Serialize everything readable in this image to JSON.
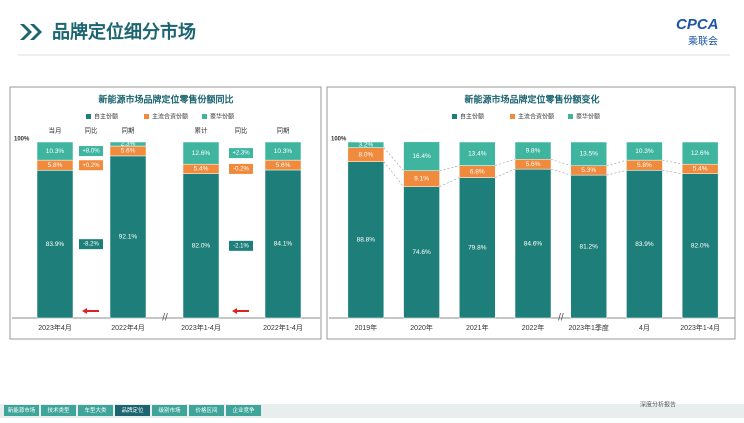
{
  "header": {
    "title": "品牌定位细分市场",
    "logo": "CPCA",
    "logo_sub": "乘联会"
  },
  "chart_data": [
    {
      "type": "bar",
      "stacked": true,
      "title": "新能源市场品牌定位零售份额同比",
      "categories": [
        "2023年4月",
        "2022年4月",
        "2023年1-4月",
        "2022年1-4月"
      ],
      "column_headers": [
        "当月",
        "同期",
        "累计",
        "同期"
      ],
      "change_headers": [
        "同比",
        "同比"
      ],
      "ylim": [
        0,
        100
      ],
      "yticks": [
        {
          "value": 100,
          "label": "100%"
        }
      ],
      "series": [
        {
          "name": "自主份额",
          "color": "#1e7f7a",
          "values": [
            83.9,
            92.1,
            82.0,
            84.1
          ],
          "value_labels": [
            "83.9%",
            "92.1%",
            "82.0%",
            "84.1%"
          ],
          "changes": [
            -8.2,
            -2.1
          ],
          "change_labels": [
            "-8.2%",
            "-2.1%"
          ]
        },
        {
          "name": "主流合资份额",
          "color": "#f08a3c",
          "values": [
            5.8,
            5.6,
            5.4,
            5.6
          ],
          "value_labels": [
            "5.8%",
            "5.6%",
            "5.4%",
            "5.6%"
          ],
          "changes": [
            0.2,
            -0.2
          ],
          "change_labels": [
            "+0.2%",
            "-0.2%"
          ]
        },
        {
          "name": "豪华份额",
          "color": "#3fb5a0",
          "values": [
            10.3,
            2.3,
            12.6,
            10.3
          ],
          "value_labels": [
            "10.3%",
            "2.3%",
            "12.6%",
            "10.3%"
          ],
          "changes": [
            8.0,
            2.3
          ],
          "change_labels": [
            "+8.0%",
            "+2.3%"
          ]
        }
      ]
    },
    {
      "type": "bar",
      "stacked": true,
      "title": "新能源市场品牌定位零售份额变化",
      "categories": [
        "2019年",
        "2020年",
        "2021年",
        "2022年",
        "2023年1季度",
        "4月",
        "2023年1-4月"
      ],
      "ylim": [
        0,
        100
      ],
      "yticks": [
        {
          "value": 100,
          "label": "100%"
        }
      ],
      "series": [
        {
          "name": "自主份额",
          "color": "#1e7f7a",
          "values": [
            88.8,
            74.6,
            79.8,
            84.6,
            81.2,
            83.9,
            82.0
          ],
          "value_labels": [
            "88.8%",
            "74.6%",
            "79.8%",
            "84.6%",
            "81.2%",
            "83.9%",
            "82.0%"
          ]
        },
        {
          "name": "主流合资份额",
          "color": "#f08a3c",
          "values": [
            8.0,
            9.1,
            6.8,
            5.6,
            5.3,
            5.8,
            5.4
          ],
          "value_labels": [
            "8.0%",
            "9.1%",
            "6.8%",
            "5.6%",
            "5.3%",
            "5.8%",
            "5.4%"
          ]
        },
        {
          "name": "豪华份额",
          "color": "#3fb5a0",
          "values": [
            3.2,
            16.4,
            13.4,
            9.8,
            13.5,
            10.3,
            12.6
          ],
          "value_labels": [
            "3.2%",
            "16.4%",
            "13.4%",
            "9.8%",
            "13.5%",
            "10.3%",
            "12.6%"
          ]
        }
      ]
    }
  ],
  "footer": {
    "tabs": [
      "新能源市场",
      "技术类型",
      "车型大类",
      "品牌定位",
      "级别市场",
      "价格区间",
      "企业竞争"
    ],
    "active": 3,
    "note": "深度分析报告"
  }
}
